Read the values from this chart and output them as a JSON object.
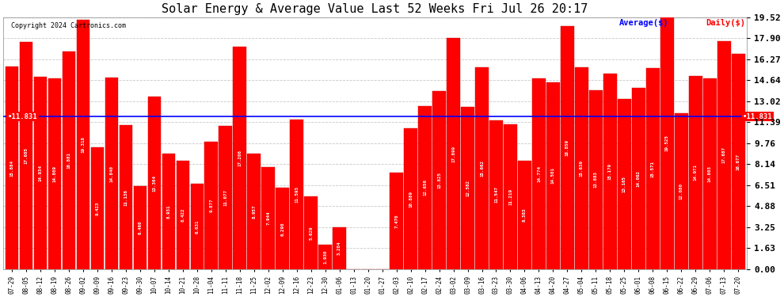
{
  "title": "Solar Energy & Average Value Last 52 Weeks Fri Jul 26 20:17",
  "copyright": "Copyright 2024 Cartronics.com",
  "legend_avg": "Average($)",
  "legend_daily": "Daily($)",
  "average_line": 11.831,
  "bar_color": "#ff0000",
  "avg_line_color": "#0000ff",
  "background_color": "#ffffff",
  "grid_color": "#bbbbbb",
  "dates": [
    "07-29",
    "08-05",
    "08-12",
    "08-19",
    "08-26",
    "09-02",
    "09-09",
    "09-16",
    "09-23",
    "09-30",
    "10-07",
    "10-14",
    "10-21",
    "10-28",
    "11-04",
    "11-11",
    "11-18",
    "11-25",
    "12-02",
    "12-09",
    "12-16",
    "12-23",
    "12-30",
    "01-06",
    "01-13",
    "01-20",
    "01-27",
    "02-03",
    "02-10",
    "02-17",
    "02-24",
    "03-02",
    "03-09",
    "03-16",
    "03-23",
    "03-30",
    "04-06",
    "04-13",
    "04-20",
    "04-27",
    "05-04",
    "05-11",
    "05-18",
    "05-25",
    "06-01",
    "06-08",
    "06-15",
    "06-22",
    "06-29",
    "07-06",
    "07-13",
    "07-20"
  ],
  "values": [
    15.684,
    17.605,
    14.934,
    14.809,
    16.881,
    19.318,
    9.423,
    14.84,
    11.136,
    6.46,
    13.364,
    8.931,
    8.422,
    6.631,
    9.877,
    11.077,
    17.206,
    8.957,
    7.944,
    6.29,
    11.593,
    5.629,
    1.93,
    3.284,
    0.0,
    0.0,
    0.013,
    7.47,
    10.889,
    12.656,
    13.825,
    17.899,
    12.582,
    15.662,
    11.547,
    11.219,
    8.383,
    14.774,
    14.501,
    18.859,
    15.639,
    13.883,
    15.179,
    13.165,
    14.062,
    15.571,
    19.525,
    12.08,
    14.971,
    14.803,
    17.687,
    16.677
  ],
  "yticks": [
    0.0,
    1.63,
    3.25,
    4.88,
    6.51,
    8.14,
    9.76,
    11.39,
    13.02,
    14.64,
    16.27,
    17.9,
    19.52
  ],
  "ymax": 19.52,
  "ymin": 0.0
}
